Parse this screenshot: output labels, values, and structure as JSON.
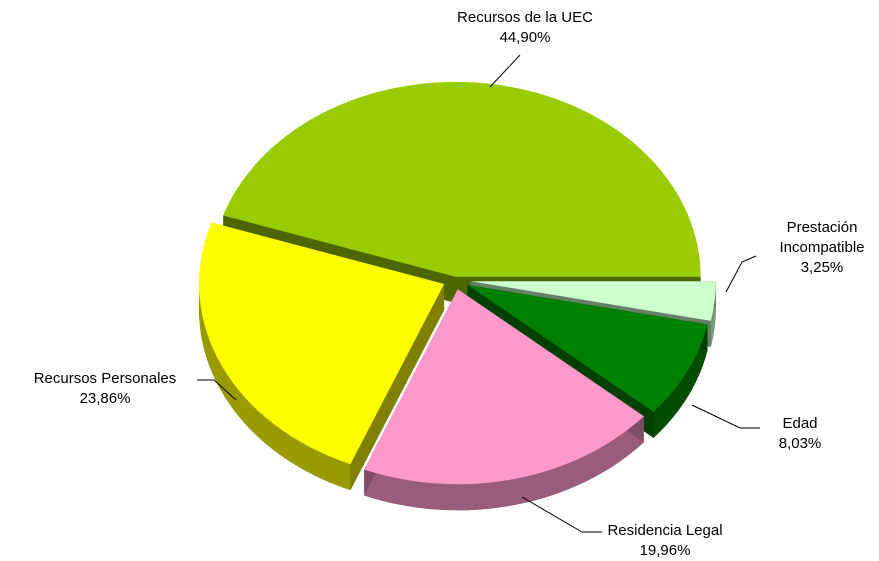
{
  "chart_data": {
    "type": "pie",
    "categories": [
      "Recursos de la UEC",
      "Prestación Incompatible",
      "Edad",
      "Residencia Legal",
      "Recursos Personales"
    ],
    "values": [
      44.9,
      3.25,
      8.03,
      19.96,
      23.86
    ],
    "value_labels": [
      "44,90%",
      "3,25%",
      "8,03%",
      "19,96%",
      "23,86%"
    ],
    "colors": [
      "#99cc00",
      "#ccffcc",
      "#008000",
      "#ff99cc",
      "#ffff00"
    ]
  }
}
